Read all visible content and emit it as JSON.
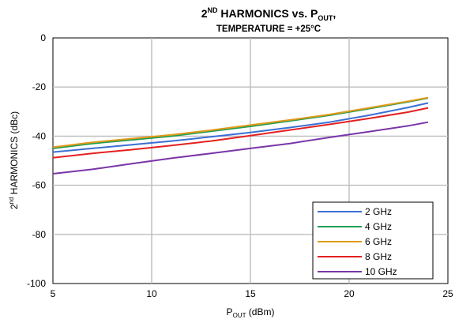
{
  "chart_data": {
    "type": "line",
    "title_main": "2",
    "title_main_sup": "ND",
    "title_main_rest": " HARMONICS vs. P",
    "title_main_sub": "OUT",
    "title_main_end": ",",
    "title_sub": "TEMPERATURE = +25°C",
    "xlabel_main": "P",
    "xlabel_sub": "OUT",
    "xlabel_rest": " (dBm)",
    "ylabel_main": "2",
    "ylabel_sup": "nd",
    "ylabel_rest": " HARMONICS (dBc)",
    "xlim": [
      5,
      25
    ],
    "ylim": [
      -100,
      0
    ],
    "x_ticks": [
      5,
      10,
      15,
      20,
      25
    ],
    "y_ticks": [
      0,
      -20,
      -40,
      -60,
      -80,
      -100
    ],
    "x_tick_labels": [
      "5",
      "10",
      "15",
      "20",
      "25"
    ],
    "y_tick_labels": [
      "0",
      "-20",
      "-40",
      "-60",
      "-80",
      "-100"
    ],
    "grid": true,
    "legend_position": "bottom-right",
    "series": [
      {
        "name": "2 GHz",
        "color": "#3b6fd4",
        "x": [
          5,
          7,
          9,
          11,
          13,
          15,
          17,
          19,
          21,
          23,
          24
        ],
        "y": [
          -46.5,
          -45.0,
          -43.5,
          -42.0,
          -40.3,
          -38.5,
          -36.5,
          -34.3,
          -31.5,
          -28.3,
          -26.5
        ]
      },
      {
        "name": "4 GHz",
        "color": "#1f9e55",
        "x": [
          5,
          7,
          9,
          11,
          13,
          15,
          17,
          19,
          21,
          23,
          24
        ],
        "y": [
          -45.0,
          -43.0,
          -41.5,
          -40.0,
          -38.0,
          -36.0,
          -33.8,
          -31.5,
          -28.8,
          -26.0,
          -24.5
        ]
      },
      {
        "name": "6 GHz",
        "color": "#e09a1a",
        "x": [
          5,
          7,
          9,
          11,
          13,
          15,
          17,
          19,
          21,
          23,
          24
        ],
        "y": [
          -44.5,
          -42.5,
          -41.0,
          -39.5,
          -37.6,
          -35.5,
          -33.4,
          -31.2,
          -28.5,
          -25.8,
          -24.3
        ]
      },
      {
        "name": "8 GHz",
        "color": "#e52020",
        "x": [
          5,
          7,
          9,
          11,
          13,
          15,
          17,
          19,
          21,
          23,
          24
        ],
        "y": [
          -48.8,
          -47.0,
          -45.5,
          -43.8,
          -42.0,
          -39.8,
          -37.5,
          -35.2,
          -32.8,
          -30.2,
          -28.5
        ]
      },
      {
        "name": "10 GHz",
        "color": "#7a35a8",
        "x": [
          5,
          7,
          9,
          11,
          13,
          15,
          17,
          19,
          21,
          23,
          24
        ],
        "y": [
          -55.3,
          -53.5,
          -51.2,
          -49.0,
          -47.0,
          -45.0,
          -43.0,
          -40.5,
          -38.2,
          -35.8,
          -34.3
        ]
      }
    ]
  }
}
